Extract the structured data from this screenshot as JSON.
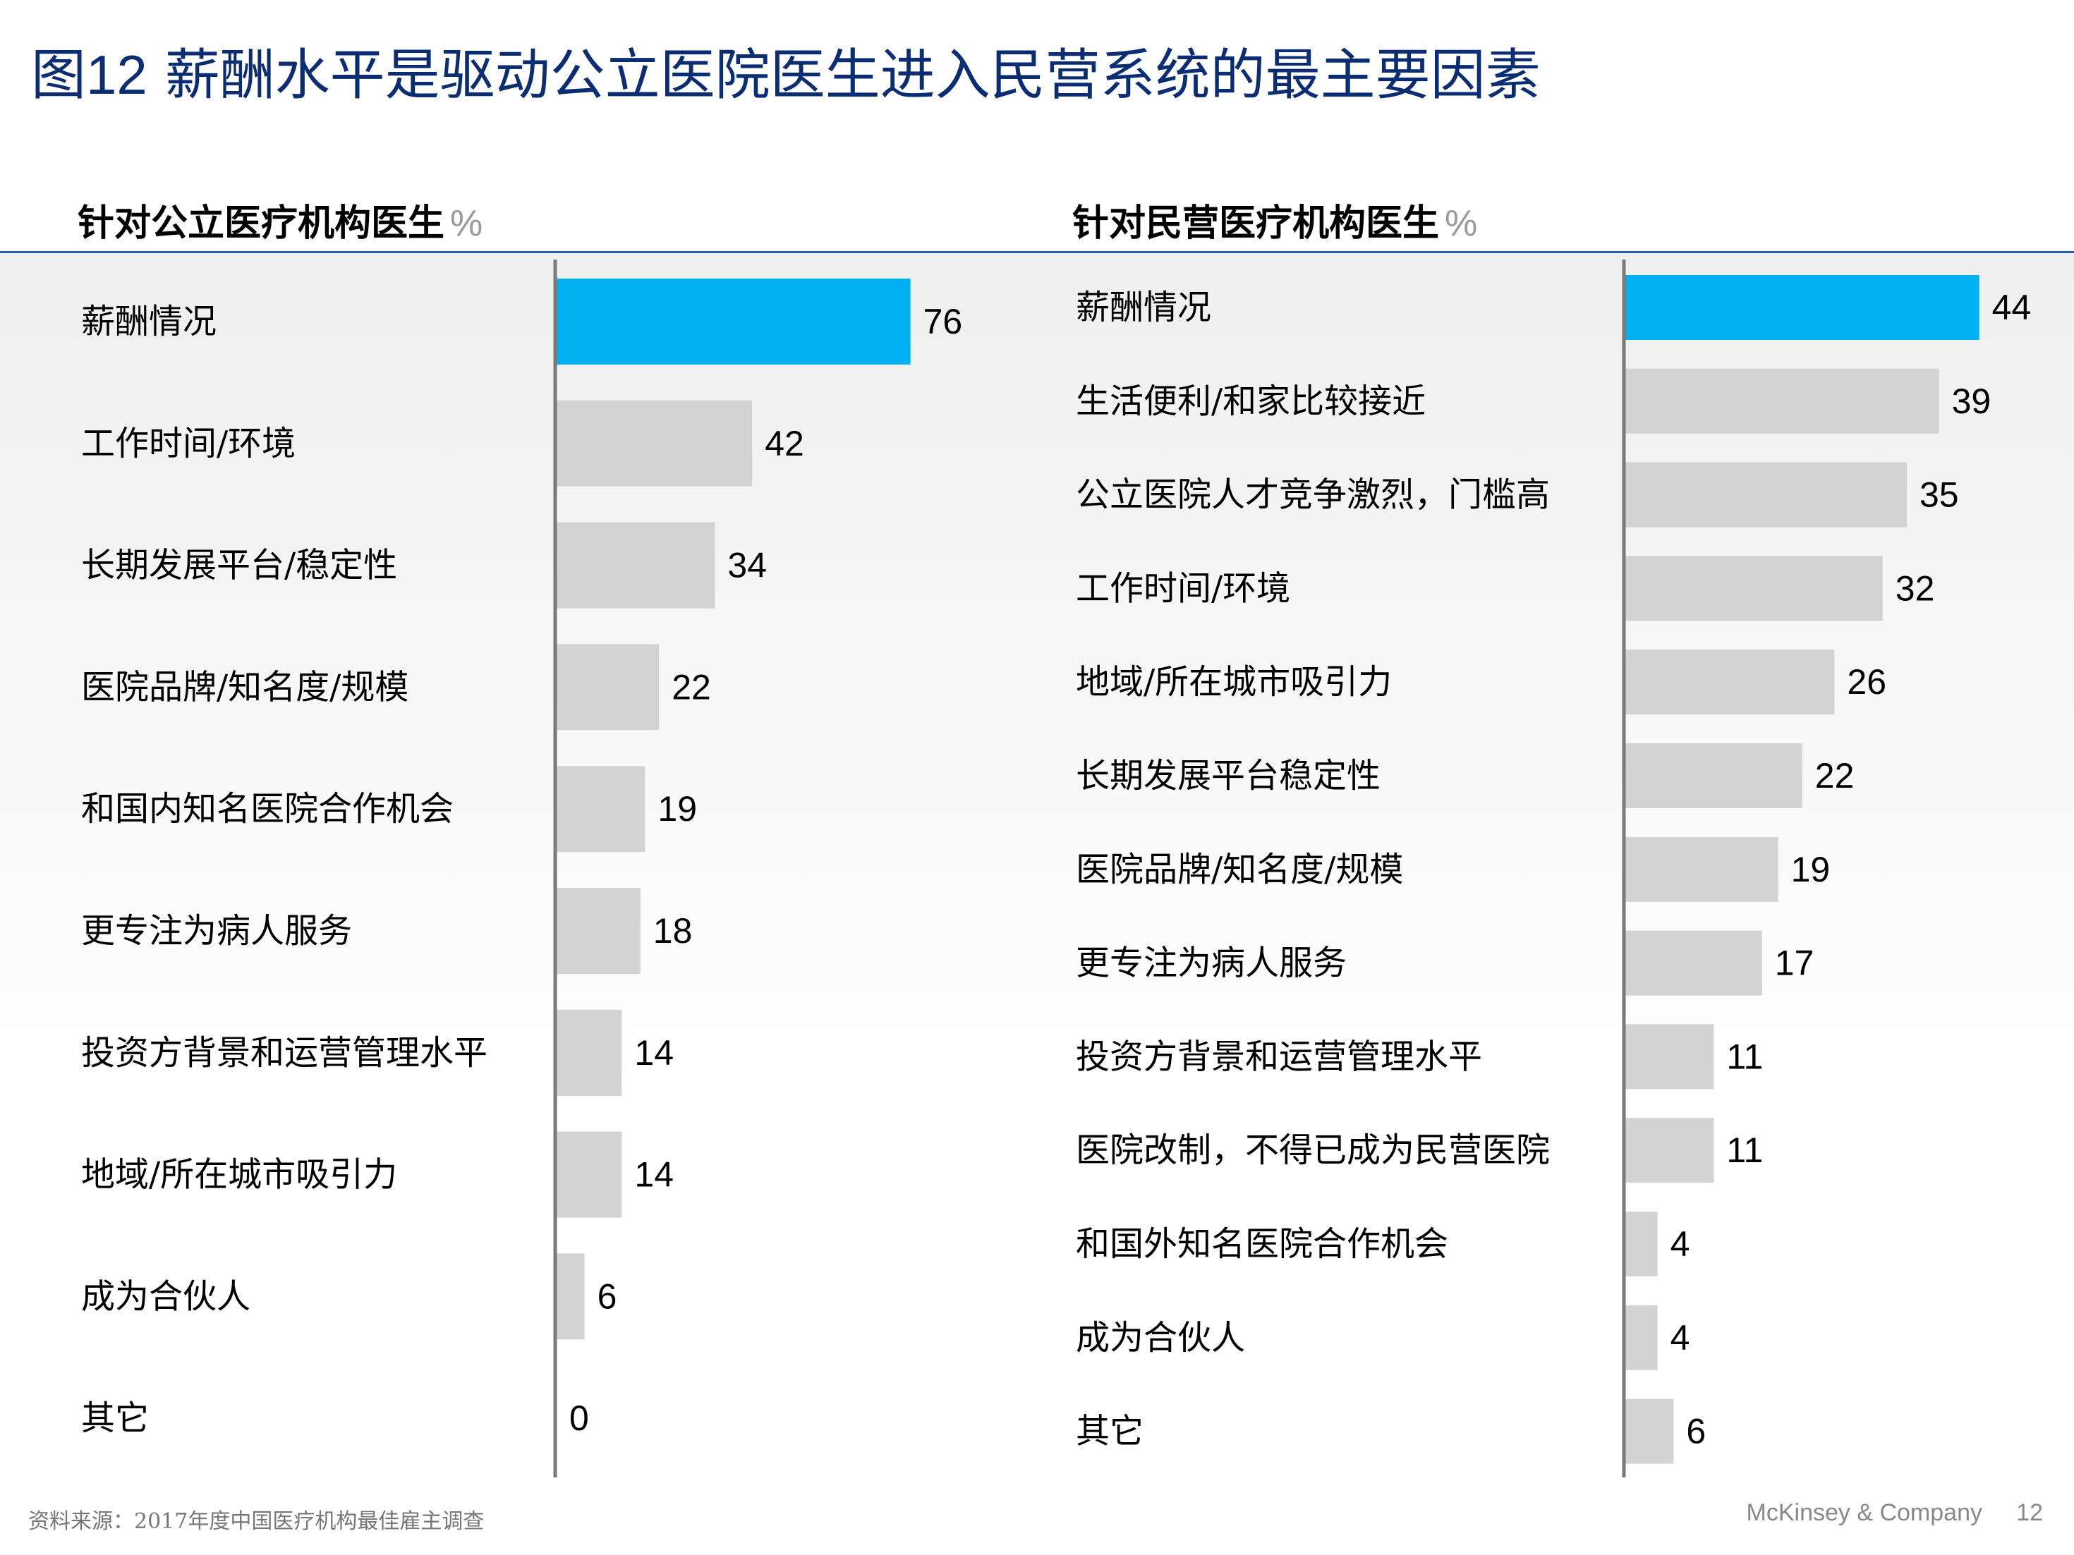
{
  "title": {
    "prefix": "图",
    "number": "12",
    "text": "薪酬水平是驱动公立医院医生进入民营系统的最主要因素"
  },
  "colors": {
    "highlight": "#00b0f0",
    "bar": "#d3d3d3",
    "title": "#0b2d74",
    "rule": "#2b5fa8"
  },
  "chart_data": [
    {
      "type": "bar",
      "orientation": "horizontal",
      "title": "针对公立医疗机构医生",
      "unit": "%",
      "categories": [
        "薪酬情况",
        "工作时间/环境",
        "长期发展平台/稳定性",
        "医院品牌/知名度/规模",
        "和国内知名医院合作机会",
        "更专注为病人服务",
        "投资方背景和运营管理水平",
        "地域/所在城市吸引力",
        "成为合伙人",
        "其它"
      ],
      "values": [
        76,
        42,
        34,
        22,
        19,
        18,
        14,
        14,
        6,
        0
      ],
      "highlight_index": 0
    },
    {
      "type": "bar",
      "orientation": "horizontal",
      "title": "针对民营医疗机构医生",
      "unit": "%",
      "categories": [
        "薪酬情况",
        "生活便利/和家比较接近",
        "公立医院人才竞争激烈，门槛高",
        "工作时间/环境",
        "地域/所在城市吸引力",
        "长期发展平台稳定性",
        "医院品牌/知名度/规模",
        "更专注为病人服务",
        "投资方背景和运营管理水平",
        "医院改制，不得已成为民营医院",
        "和国外知名医院合作机会",
        "成为合伙人",
        "其它"
      ],
      "values": [
        44,
        39,
        35,
        32,
        26,
        22,
        19,
        17,
        11,
        11,
        4,
        4,
        6
      ],
      "highlight_index": 0
    }
  ],
  "footer": {
    "source": "资料来源：2017年度中国医疗机构最佳雇主调查",
    "brand": "McKinsey & Company",
    "page": "12"
  }
}
